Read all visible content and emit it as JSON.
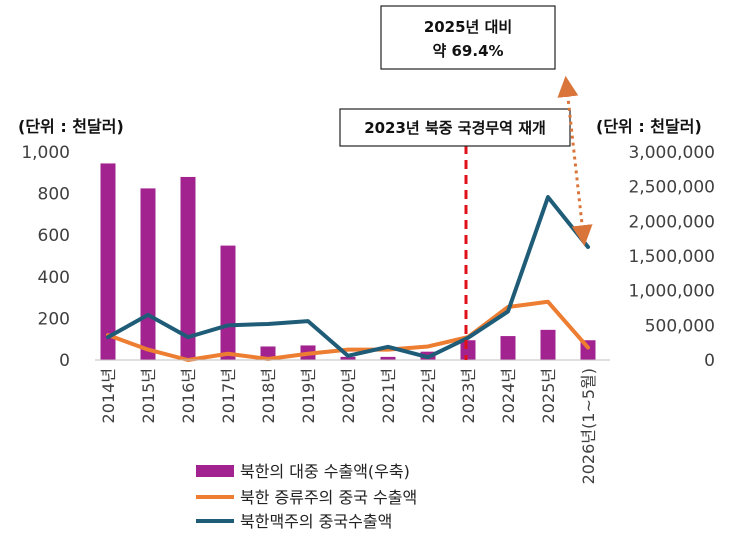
{
  "chart_data": {
    "type": "bar+line",
    "categories": [
      "2014년",
      "2015년",
      "2016년",
      "2017년",
      "2018년",
      "2019년",
      "2020년",
      "2021년",
      "2022년",
      "2023년",
      "2024년",
      "2025년",
      "2026년(1~5월)"
    ],
    "left_axis": {
      "unit_label": "(단위 : 천달러)",
      "range": [
        0,
        1000
      ],
      "ticks": [
        "0",
        "200",
        "400",
        "600",
        "800",
        "1,000"
      ]
    },
    "right_axis": {
      "unit_label": "(단위 : 천달러)",
      "range": [
        0,
        3000000
      ],
      "ticks": [
        "0",
        "500,000",
        "1,000,000",
        "1,500,000",
        "2,000,000",
        "2,500,000",
        "3,000,000"
      ]
    },
    "series": [
      {
        "name": "북한의 대중 수출액(우축)",
        "kind": "bar",
        "axis": "left",
        "color": "#A2238F",
        "values": [
          945,
          825,
          880,
          550,
          65,
          70,
          15,
          15,
          40,
          95,
          115,
          145,
          95
        ]
      },
      {
        "name": "북한 증류주의 중국 수출액",
        "kind": "line",
        "axis": "left",
        "color": "#ED7D31",
        "values": [
          120,
          50,
          0,
          30,
          5,
          30,
          50,
          50,
          65,
          110,
          255,
          280,
          60
        ]
      },
      {
        "name": "북한맥주의 중국수출액",
        "kind": "line",
        "axis": "right",
        "color": "#1F5C78",
        "values": [
          330000,
          650000,
          330000,
          500000,
          520000,
          560000,
          60000,
          190000,
          40000,
          320000,
          700000,
          2350000,
          1630000
        ]
      }
    ],
    "annotations": {
      "event_label": "2023년 북중 국경무역 재개",
      "event_category_index": 9,
      "callout_line1": "2025년 대비",
      "callout_line2": "약 69.4%"
    },
    "grid": false,
    "legend": "bottom-center"
  }
}
